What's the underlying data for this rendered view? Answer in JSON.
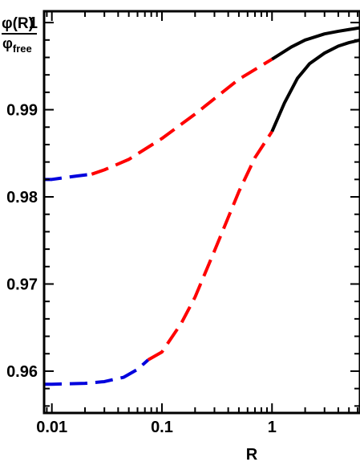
{
  "chart_data": {
    "type": "line",
    "title": "",
    "xlabel": "R",
    "ylabel": {
      "numerator": "φ(R)",
      "denominator_symbol": "φ",
      "denominator_subscript": "free"
    },
    "xscale": "log",
    "xlim": [
      0.0085,
      6.3
    ],
    "ylim": [
      0.9552,
      1.0013
    ],
    "x_ticks": [
      {
        "value": 0.01,
        "label": "0.01"
      },
      {
        "value": 0.1,
        "label": "0.1"
      },
      {
        "value": 1,
        "label": "1"
      }
    ],
    "y_ticks": [
      {
        "value": 0.96,
        "label": "0.96"
      },
      {
        "value": 0.97,
        "label": "0.97"
      },
      {
        "value": 0.98,
        "label": "0.98"
      },
      {
        "value": 0.99,
        "label": "0.99"
      },
      {
        "value": 1.0,
        "label": "1"
      }
    ],
    "grid": false,
    "legend": "none",
    "series": [
      {
        "segments": [
          {
            "style": "dashed",
            "color": "#0000dd",
            "points": [
              [
                0.0085,
                0.982
              ],
              [
                0.01,
                0.982
              ],
              [
                0.013,
                0.9822
              ],
              [
                0.017,
                0.9824
              ],
              [
                0.023,
                0.9826
              ]
            ]
          },
          {
            "style": "dashed",
            "color": "#ff0000",
            "points": [
              [
                0.023,
                0.9826
              ],
              [
                0.03,
                0.9831
              ],
              [
                0.05,
                0.9843
              ],
              [
                0.1,
                0.9867
              ],
              [
                0.2,
                0.9895
              ],
              [
                0.5,
                0.9935
              ],
              [
                1.0,
                0.9958
              ]
            ]
          },
          {
            "style": "solid",
            "color": "#000000",
            "points": [
              [
                1.0,
                0.9958
              ],
              [
                1.5,
                0.9972
              ],
              [
                2.0,
                0.998
              ],
              [
                3.0,
                0.9987
              ],
              [
                4.0,
                0.999
              ],
              [
                5.0,
                0.9992
              ],
              [
                6.3,
                0.9994
              ]
            ]
          }
        ]
      },
      {
        "segments": [
          {
            "style": "dashed",
            "color": "#0000dd",
            "points": [
              [
                0.0085,
                0.9585
              ],
              [
                0.01,
                0.9585
              ],
              [
                0.02,
                0.9586
              ],
              [
                0.03,
                0.9588
              ],
              [
                0.045,
                0.9593
              ],
              [
                0.06,
                0.9602
              ],
              [
                0.075,
                0.9613
              ]
            ]
          },
          {
            "style": "dashed",
            "color": "#ff0000",
            "points": [
              [
                0.075,
                0.9613
              ],
              [
                0.1,
                0.9622
              ],
              [
                0.15,
                0.9655
              ],
              [
                0.2,
                0.9685
              ],
              [
                0.3,
                0.9738
              ],
              [
                0.5,
                0.9806
              ],
              [
                0.7,
                0.9845
              ],
              [
                1.0,
                0.9875
              ]
            ]
          },
          {
            "style": "solid",
            "color": "#000000",
            "points": [
              [
                1.0,
                0.9875
              ],
              [
                1.3,
                0.9908
              ],
              [
                1.7,
                0.9936
              ],
              [
                2.2,
                0.9953
              ],
              [
                3.0,
                0.9965
              ],
              [
                4.0,
                0.9973
              ],
              [
                5.0,
                0.9977
              ],
              [
                6.3,
                0.998
              ]
            ]
          }
        ]
      }
    ]
  }
}
